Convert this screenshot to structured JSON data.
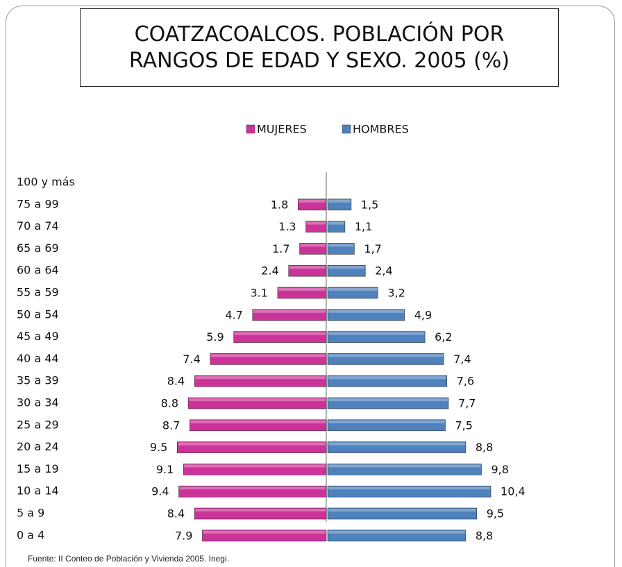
{
  "chart_data": {
    "type": "bar",
    "orientation": "horizontal",
    "title": "COATZACOALCOS. POBLACIÓN POR RANGOS DE EDAD Y SEXO. 2005 (%)",
    "source": "Fuente: II Conteo de Población y Vivienda 2005. Inegi.",
    "categories": [
      "100 y más",
      "75 a 99",
      "70 a 74",
      "65 a 69",
      "60 a 64",
      "55 a 59",
      "50 a 54",
      "45 a 49",
      "40 a 44",
      "35 a 39",
      "30 a 34",
      "25 a 29",
      "20 a 24",
      "15 a 19",
      "10 a 14",
      "5 a 9",
      "0 a 4"
    ],
    "legend": "top",
    "series": [
      {
        "name": "MUJERES",
        "color": "#cc3399",
        "side": "left",
        "values": [
          null,
          1.8,
          1.3,
          1.7,
          2.4,
          3.1,
          4.7,
          5.9,
          7.4,
          8.4,
          8.8,
          8.7,
          9.5,
          9.1,
          9.4,
          8.4,
          7.9
        ]
      },
      {
        "name": "HOMBRES",
        "color": "#4f81bd",
        "side": "right",
        "values": [
          null,
          1.5,
          1.1,
          1.7,
          2.4,
          3.2,
          4.9,
          6.2,
          7.4,
          7.6,
          7.7,
          7.5,
          8.8,
          9.8,
          10.4,
          9.5,
          8.8
        ],
        "value_labels": [
          null,
          "1,5",
          "1,1",
          "1,7",
          "2,4",
          "3,2",
          "4,9",
          "6,2",
          "7,4",
          "7,6",
          "7,7",
          "7,5",
          "8,8",
          "9,8",
          "10,4",
          "9,5",
          "8,8"
        ]
      }
    ]
  }
}
